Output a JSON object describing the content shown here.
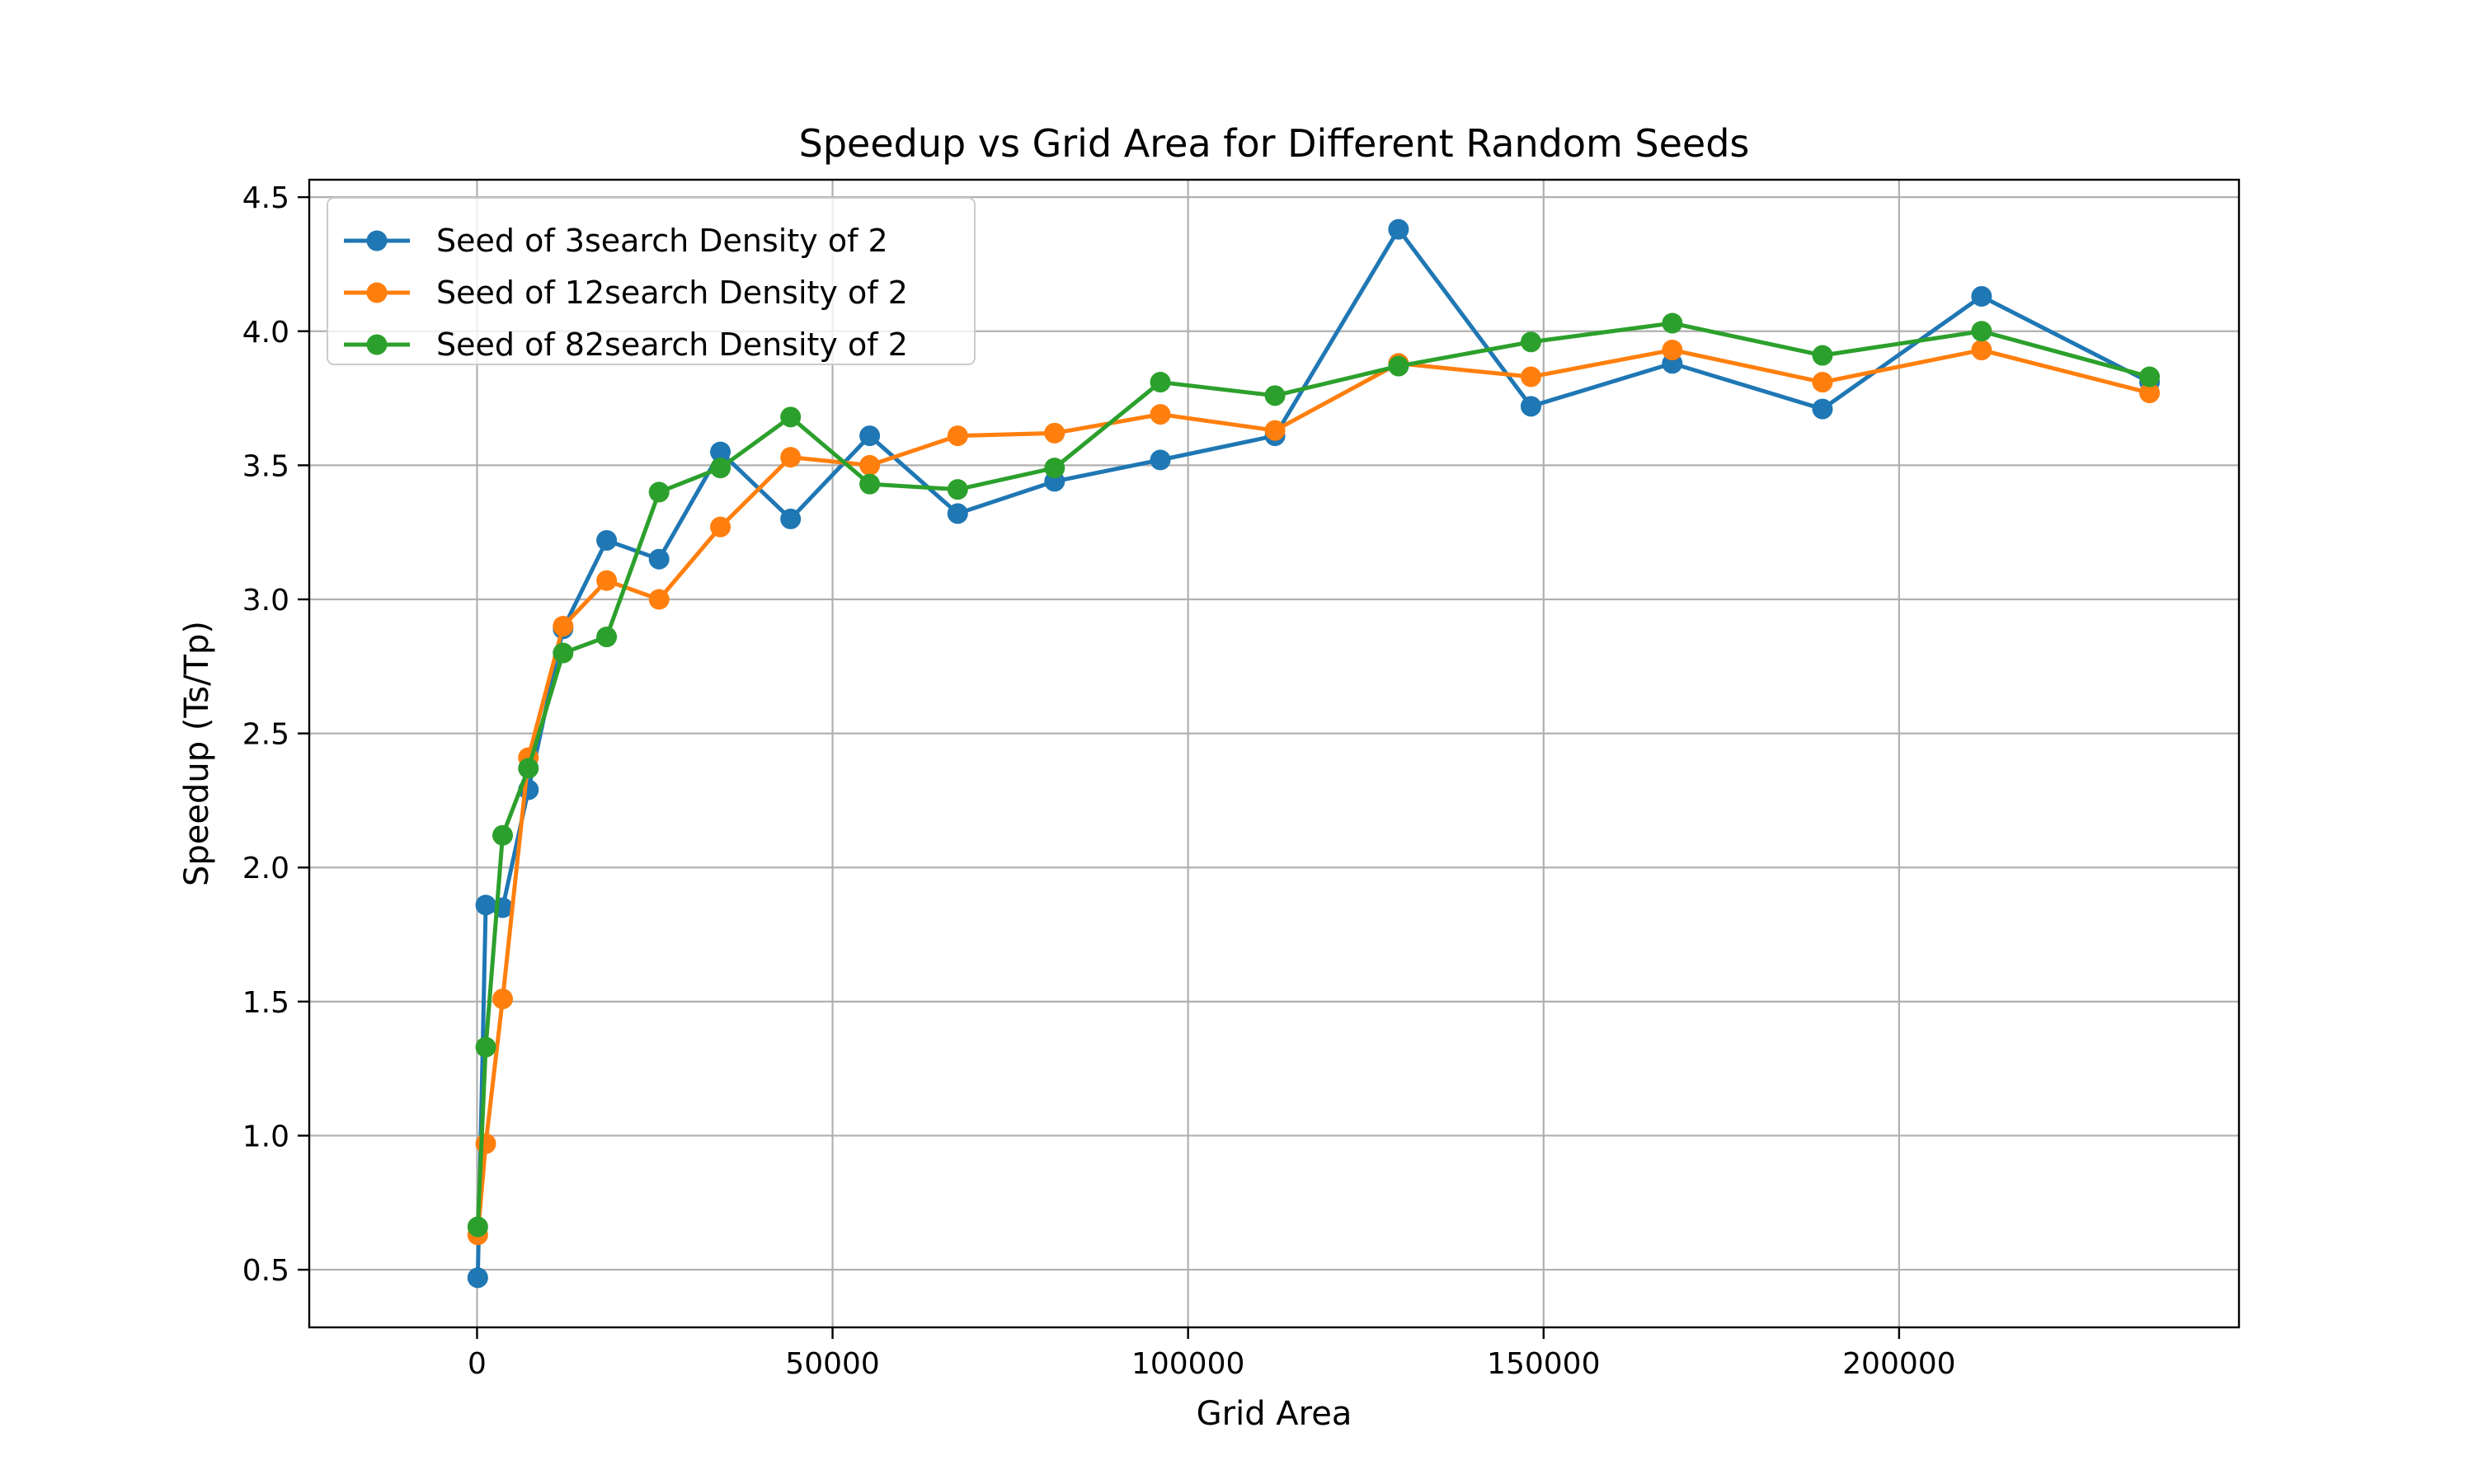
{
  "chart_data": {
    "type": "line",
    "title": "Speedup vs Grid Area for Different Random Seeds",
    "xlabel": "Grid Area",
    "ylabel": "Speedup (Ts/Tp)",
    "xlim": [
      -23600,
      247800
    ],
    "ylim": [
      0.285,
      4.565
    ],
    "xticks": [
      0,
      50000,
      100000,
      150000,
      200000
    ],
    "xtick_labels": [
      "0",
      "50000",
      "100000",
      "150000",
      "200000"
    ],
    "yticks": [
      0.5,
      1.0,
      1.5,
      2.0,
      2.5,
      3.0,
      3.5,
      4.0,
      4.5
    ],
    "ytick_labels": [
      "0.5",
      "1.0",
      "1.5",
      "2.0",
      "2.5",
      "3.0",
      "3.5",
      "4.0",
      "4.5"
    ],
    "grid": true,
    "legend_position": "upper-left",
    "x": [
      100,
      1225,
      3600,
      7225,
      12100,
      18225,
      25600,
      34225,
      44100,
      55225,
      67600,
      81225,
      96100,
      112225,
      129600,
      148225,
      168100,
      189225,
      211600,
      235225
    ],
    "series": [
      {
        "name": "Seed of 3search Density of 2",
        "color": "#1f77b4",
        "values": [
          0.47,
          1.86,
          1.85,
          2.29,
          2.89,
          3.22,
          3.15,
          3.55,
          3.3,
          3.61,
          3.32,
          3.44,
          3.52,
          3.61,
          4.38,
          3.72,
          3.88,
          3.71,
          4.13,
          3.81
        ]
      },
      {
        "name": "Seed of 12search Density of 2",
        "color": "#ff7f0e",
        "values": [
          0.63,
          0.97,
          1.51,
          2.41,
          2.9,
          3.07,
          3.0,
          3.27,
          3.53,
          3.5,
          3.61,
          3.62,
          3.69,
          3.63,
          3.88,
          3.83,
          3.93,
          3.81,
          3.93,
          3.77
        ]
      },
      {
        "name": "Seed of 82search Density of 2",
        "color": "#2ca02c",
        "values": [
          0.66,
          1.33,
          2.12,
          2.37,
          2.8,
          2.86,
          3.4,
          3.49,
          3.68,
          3.43,
          3.41,
          3.49,
          3.81,
          3.76,
          3.87,
          3.96,
          4.03,
          3.91,
          4.0,
          3.83
        ]
      }
    ]
  }
}
